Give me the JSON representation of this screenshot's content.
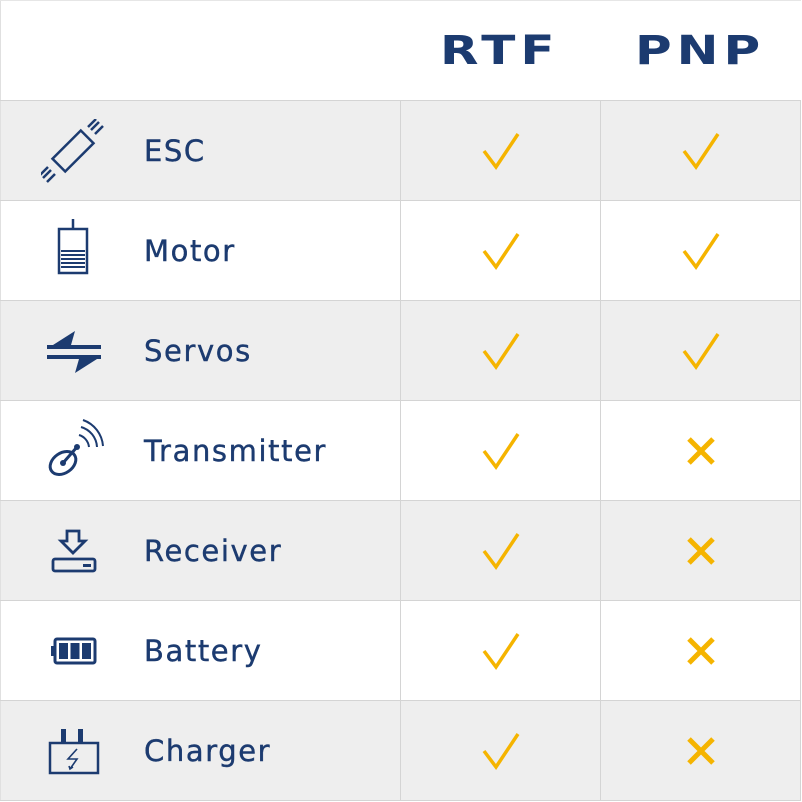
{
  "colors": {
    "navy": "#1c3b70",
    "gold": "#f5b400",
    "row_alt": "#eeeeee"
  },
  "header": {
    "col1": "",
    "col2": "RTF",
    "col3": "PNP"
  },
  "rows": [
    {
      "label": "ESC",
      "icon": "esc-icon",
      "rtf": "check",
      "pnp": "check"
    },
    {
      "label": "Motor",
      "icon": "motor-icon",
      "rtf": "check",
      "pnp": "check"
    },
    {
      "label": "Servos",
      "icon": "servos-icon",
      "rtf": "check",
      "pnp": "check"
    },
    {
      "label": "Transmitter",
      "icon": "transmitter-icon",
      "rtf": "check",
      "pnp": "cross"
    },
    {
      "label": "Receiver",
      "icon": "receiver-icon",
      "rtf": "check",
      "pnp": "cross"
    },
    {
      "label": "Battery",
      "icon": "battery-icon",
      "rtf": "check",
      "pnp": "cross"
    },
    {
      "label": "Charger",
      "icon": "charger-icon",
      "rtf": "check",
      "pnp": "cross"
    }
  ]
}
